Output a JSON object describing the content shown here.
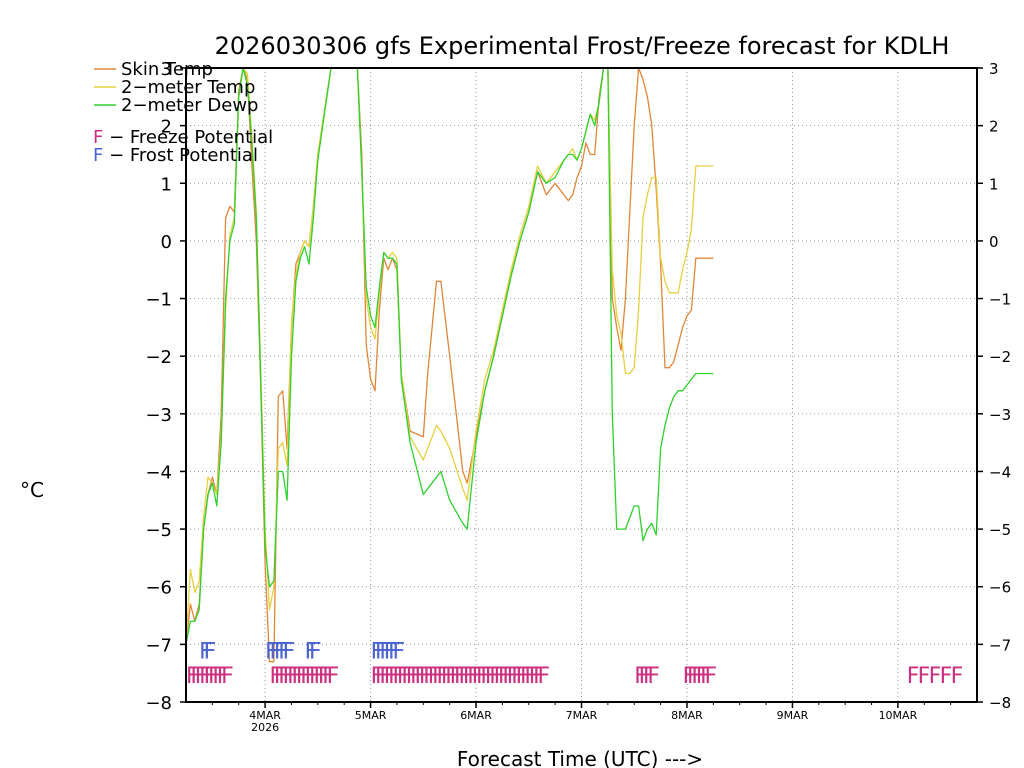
{
  "chart_data": {
    "type": "line",
    "title": "2026030306 gfs Experimental Frost/Freeze forecast for KDLH",
    "xlabel": "Forecast Time (UTC) --->",
    "ylabel": "°C",
    "ylim": [
      -8,
      3
    ],
    "xlim": [
      0,
      180
    ],
    "x_unit": "hours since 2026-03-03 06Z",
    "grid": true,
    "y_ticks": [
      -8,
      -7,
      -6,
      -5,
      -4,
      -3,
      -2,
      -1,
      0,
      1,
      2,
      3
    ],
    "y_tick_labels": [
      "−8",
      "−7",
      "−6",
      "−5",
      "−4",
      "−3",
      "−2",
      "−1",
      "0",
      "1",
      "2",
      "3"
    ],
    "x_ticks": [
      {
        "x": 18,
        "label": "4MAR",
        "sublabel": "2026"
      },
      {
        "x": 42,
        "label": "5MAR"
      },
      {
        "x": 66,
        "label": "6MAR"
      },
      {
        "x": 90,
        "label": "7MAR"
      },
      {
        "x": 114,
        "label": "8MAR"
      },
      {
        "x": 138,
        "label": "9MAR"
      },
      {
        "x": 162,
        "label": "10MAR"
      }
    ],
    "legend": {
      "placement": "top-left",
      "entries": [
        {
          "name": "Skin Temp",
          "color": "#e0863a"
        },
        {
          "name": "2−meter Temp",
          "color": "#e6d040"
        },
        {
          "name": "2−meter Dewp",
          "color": "#2ed12e"
        },
        {
          "name": "F − Freeze Potential",
          "color": "#cc2f7f"
        },
        {
          "name": "F − Frost Potential",
          "color": "#4a63d0"
        }
      ]
    },
    "series": [
      {
        "name": "Skin Temp",
        "color": "#e0863a",
        "x": [
          0,
          1,
          2,
          3,
          4,
          5,
          6,
          7,
          8,
          9,
          10,
          11,
          12,
          13,
          14,
          15,
          16,
          17,
          18,
          19,
          20,
          21,
          22,
          23,
          24,
          25,
          26,
          27,
          28,
          29,
          30,
          33,
          36,
          39,
          40,
          41,
          42,
          43,
          44,
          45,
          46,
          47,
          48,
          49,
          51,
          54,
          55,
          57,
          58,
          60,
          63,
          64,
          66,
          68,
          70,
          72,
          74,
          76,
          78,
          80,
          82,
          84,
          86,
          87,
          88,
          89,
          90,
          91,
          92,
          93,
          94,
          95,
          96,
          97,
          98,
          99,
          100,
          101,
          102,
          103,
          104,
          105,
          106,
          107,
          108,
          109,
          110,
          111,
          112,
          113,
          114,
          115,
          116,
          117,
          118,
          119,
          120
        ],
        "y": [
          -7.0,
          -6.3,
          -6.6,
          -6.3,
          -5.0,
          -4.4,
          -4.1,
          -4.4,
          -3.0,
          0.4,
          0.6,
          0.5,
          2.6,
          3.0,
          2.8,
          1.3,
          0.0,
          -2.5,
          -5.6,
          -7.3,
          -7.3,
          -2.7,
          -2.6,
          -3.6,
          -1.5,
          -0.4,
          -0.2,
          0.0,
          -0.1,
          0.6,
          1.5,
          3.0,
          3.0,
          3.0,
          1.5,
          -1.8,
          -2.4,
          -2.6,
          -1.2,
          -0.3,
          -0.5,
          -0.3,
          -0.5,
          -2.3,
          -3.3,
          -3.4,
          -2.3,
          -0.7,
          -0.7,
          -2.0,
          -4.0,
          -4.2,
          -3.4,
          -2.6,
          -2.0,
          -1.3,
          -0.6,
          0.0,
          0.5,
          1.2,
          0.8,
          1.0,
          0.8,
          0.7,
          0.8,
          1.1,
          1.3,
          1.7,
          1.5,
          1.5,
          2.5,
          3.0,
          3.0,
          -1.0,
          -1.5,
          -1.9,
          -1.0,
          0.5,
          2.0,
          3.0,
          2.8,
          2.5,
          2.0,
          0.9,
          -0.4,
          -2.2,
          -2.2,
          -2.1,
          -1.8,
          -1.5,
          -1.3,
          -1.2,
          -0.3,
          -0.3,
          -0.3,
          -0.3,
          -0.3
        ]
      },
      {
        "name": "2−meter Temp",
        "color": "#e6d040",
        "x": [
          0,
          1,
          2,
          3,
          4,
          5,
          6,
          7,
          8,
          9,
          10,
          11,
          12,
          13,
          14,
          15,
          16,
          17,
          18,
          19,
          20,
          21,
          22,
          23,
          24,
          25,
          26,
          27,
          28,
          29,
          30,
          33,
          36,
          39,
          40,
          41,
          42,
          43,
          44,
          45,
          46,
          47,
          48,
          49,
          51,
          54,
          55,
          57,
          58,
          60,
          63,
          64,
          66,
          68,
          70,
          72,
          74,
          76,
          78,
          80,
          82,
          84,
          86,
          87,
          88,
          89,
          90,
          91,
          92,
          93,
          94,
          95,
          96,
          97,
          98,
          99,
          100,
          101,
          102,
          103,
          104,
          105,
          106,
          107,
          108,
          109,
          110,
          111,
          112,
          113,
          114,
          115,
          116,
          117,
          118,
          119,
          120
        ],
        "y": [
          -7.0,
          -5.7,
          -6.1,
          -5.9,
          -4.8,
          -4.1,
          -4.2,
          -4.4,
          -3.4,
          -1.2,
          0.1,
          0.4,
          2.5,
          3.0,
          2.9,
          1.8,
          0.5,
          -2.2,
          -5.0,
          -6.4,
          -6.0,
          -3.6,
          -3.5,
          -3.9,
          -1.4,
          -0.6,
          -0.2,
          0.0,
          -0.1,
          0.6,
          1.5,
          3.0,
          3.0,
          3.0,
          1.2,
          -1.0,
          -1.5,
          -1.7,
          -0.9,
          -0.2,
          -0.3,
          -0.2,
          -0.3,
          -2.3,
          -3.4,
          -3.8,
          -3.6,
          -3.2,
          -3.3,
          -3.6,
          -4.3,
          -4.5,
          -3.3,
          -2.4,
          -1.9,
          -1.2,
          -0.5,
          0.1,
          0.6,
          1.3,
          1.0,
          1.2,
          1.4,
          1.5,
          1.6,
          1.4,
          1.6,
          1.9,
          2.2,
          2.1,
          2.4,
          3.0,
          3.0,
          -0.5,
          -1.3,
          -1.6,
          -2.3,
          -2.3,
          -2.2,
          -1.2,
          0.4,
          0.8,
          1.1,
          1.1,
          -0.3,
          -0.7,
          -0.9,
          -0.9,
          -0.9,
          -0.5,
          -0.2,
          0.2,
          1.3,
          1.3,
          1.3,
          1.3,
          1.3
        ]
      },
      {
        "name": "2−meter Dewp",
        "color": "#2ed12e",
        "x": [
          0,
          1,
          2,
          3,
          4,
          5,
          6,
          7,
          8,
          9,
          10,
          11,
          12,
          13,
          14,
          15,
          16,
          17,
          18,
          19,
          20,
          21,
          22,
          23,
          24,
          25,
          26,
          27,
          28,
          29,
          30,
          33,
          36,
          39,
          40,
          41,
          42,
          43,
          44,
          45,
          46,
          47,
          48,
          49,
          51,
          54,
          55,
          57,
          58,
          60,
          63,
          64,
          66,
          68,
          70,
          72,
          74,
          76,
          78,
          80,
          82,
          84,
          86,
          87,
          88,
          89,
          90,
          91,
          92,
          93,
          94,
          95,
          96,
          97,
          98,
          99,
          100,
          101,
          102,
          103,
          104,
          105,
          106,
          107,
          108,
          109,
          110,
          111,
          112,
          113,
          114,
          115,
          116,
          117,
          118,
          119,
          120
        ],
        "y": [
          -7.0,
          -6.6,
          -6.6,
          -6.4,
          -5.0,
          -4.4,
          -4.2,
          -4.6,
          -3.5,
          -1.0,
          0.0,
          0.3,
          2.5,
          3.0,
          2.7,
          1.7,
          0.4,
          -2.4,
          -5.3,
          -6.0,
          -5.9,
          -4.0,
          -4.0,
          -4.5,
          -2.0,
          -0.7,
          -0.3,
          -0.1,
          -0.4,
          0.4,
          1.4,
          3.0,
          3.0,
          3.0,
          1.2,
          -0.8,
          -1.3,
          -1.5,
          -0.8,
          -0.2,
          -0.3,
          -0.3,
          -0.4,
          -2.4,
          -3.5,
          -4.4,
          -4.3,
          -4.1,
          -4.0,
          -4.5,
          -4.9,
          -5.0,
          -3.5,
          -2.6,
          -2.0,
          -1.3,
          -0.6,
          0.0,
          0.5,
          1.2,
          1.0,
          1.1,
          1.4,
          1.5,
          1.5,
          1.4,
          1.6,
          1.9,
          2.2,
          2.0,
          2.4,
          3.0,
          3.0,
          -3.0,
          -5.0,
          -5.0,
          -5.0,
          -4.8,
          -4.6,
          -4.6,
          -5.2,
          -5.0,
          -4.9,
          -5.1,
          -3.6,
          -3.2,
          -2.9,
          -2.7,
          -2.6,
          -2.6,
          -2.5,
          -2.4,
          -2.3,
          -2.3,
          -2.3,
          -2.3,
          -2.3
        ]
      }
    ],
    "annotations": [
      {
        "text": "F",
        "kind": "Frost Potential",
        "color": "#4a63d0",
        "row": "frost",
        "x": [
          3,
          4
        ]
      },
      {
        "text": "F",
        "kind": "Frost Potential",
        "color": "#4a63d0",
        "row": "frost",
        "x": [
          18,
          19,
          20,
          21,
          22,
          27,
          28
        ]
      },
      {
        "text": "F",
        "kind": "Frost Potential",
        "color": "#4a63d0",
        "row": "frost",
        "x": [
          42,
          43,
          44,
          45,
          46,
          47
        ]
      },
      {
        "text": "F",
        "kind": "Freeze Potential",
        "color": "#cc2f7f",
        "row": "freeze",
        "x": [
          0,
          1,
          2,
          3,
          4,
          5,
          6,
          7,
          8
        ]
      },
      {
        "text": "F",
        "kind": "Freeze Potential",
        "color": "#cc2f7f",
        "row": "freeze",
        "x": [
          19,
          20,
          21,
          22,
          23,
          24,
          25,
          26,
          27,
          28,
          29,
          30,
          31,
          32
        ]
      },
      {
        "text": "F",
        "kind": "Freeze Potential",
        "color": "#cc2f7f",
        "row": "freeze",
        "x": [
          42,
          43,
          44,
          45,
          46,
          47,
          48,
          49,
          50,
          51,
          52,
          53,
          54,
          55,
          56,
          57,
          58,
          59,
          60,
          61,
          62,
          63,
          64,
          65,
          66,
          67,
          68,
          69,
          70,
          71,
          72,
          73,
          74,
          75,
          76,
          77,
          78,
          79,
          80
        ]
      },
      {
        "text": "F",
        "kind": "Freeze Potential",
        "color": "#cc2f7f",
        "row": "freeze",
        "x": [
          102,
          103,
          104,
          105
        ]
      },
      {
        "text": "F",
        "kind": "Freeze Potential",
        "color": "#cc2f7f",
        "row": "freeze",
        "x": [
          113,
          114,
          115,
          116,
          117,
          118
        ]
      },
      {
        "text": "F",
        "kind": "Freeze Potential",
        "color": "#cc2f7f",
        "row": "freeze",
        "x": [
          164,
          166.5,
          169,
          171.5,
          174
        ]
      }
    ]
  }
}
